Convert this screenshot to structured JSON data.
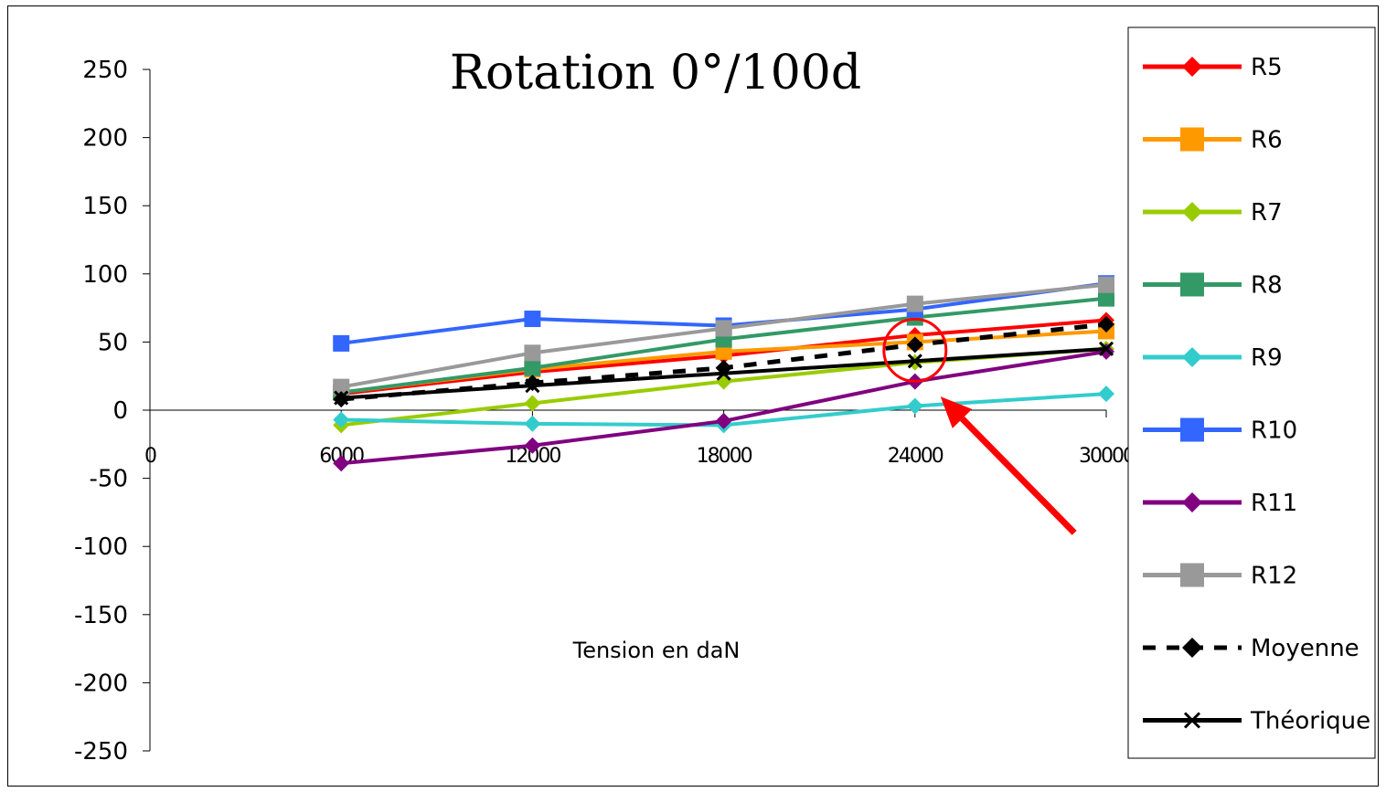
{
  "chart_data": {
    "type": "line",
    "title": "Rotation 0°/100d",
    "xlabel": "Tension en daN",
    "ylabel": "",
    "x_tick_labels": [
      "0",
      "6000",
      "12000",
      "18000",
      "24000",
      "30000"
    ],
    "x": [
      6000,
      12000,
      18000,
      24000,
      30000
    ],
    "xlim": [
      0,
      30000
    ],
    "ylim": [
      -250,
      250
    ],
    "y_ticks": [
      250,
      200,
      150,
      100,
      50,
      0,
      -50,
      -100,
      -150,
      -200,
      -250
    ],
    "legend_position": "right",
    "series": [
      {
        "name": "R5",
        "color": "#ff0000",
        "marker": "diamond",
        "dash": "solid",
        "values": [
          12,
          28,
          40,
          55,
          66
        ]
      },
      {
        "name": "R6",
        "color": "#ff9900",
        "marker": "square",
        "dash": "solid",
        "values": [
          13,
          30,
          43,
          50,
          58
        ]
      },
      {
        "name": "R7",
        "color": "#99cc00",
        "marker": "diamond",
        "dash": "solid",
        "values": [
          -11,
          5,
          21,
          35,
          45
        ]
      },
      {
        "name": "R8",
        "color": "#339966",
        "marker": "square",
        "dash": "solid",
        "values": [
          13,
          31,
          52,
          68,
          82
        ]
      },
      {
        "name": "R9",
        "color": "#33cccc",
        "marker": "diamond",
        "dash": "solid",
        "values": [
          -7,
          -10,
          -11,
          3,
          12
        ]
      },
      {
        "name": "R10",
        "color": "#3366ff",
        "marker": "square",
        "dash": "solid",
        "values": [
          49,
          67,
          62,
          74,
          93
        ]
      },
      {
        "name": "R11",
        "color": "#800080",
        "marker": "diamond",
        "dash": "solid",
        "values": [
          -39,
          -26,
          -8,
          21,
          43
        ]
      },
      {
        "name": "R12",
        "color": "#999999",
        "marker": "square",
        "dash": "solid",
        "values": [
          17,
          42,
          60,
          78,
          92
        ]
      },
      {
        "name": "Moyenne",
        "color": "#000000",
        "marker": "diamond",
        "dash": "dashed",
        "values": [
          8,
          20,
          31,
          48,
          63
        ]
      },
      {
        "name": "Théorique",
        "color": "#000000",
        "marker": "x",
        "dash": "solid",
        "values": [
          9,
          18,
          27,
          36,
          45
        ]
      }
    ],
    "annotations": [
      {
        "type": "circle",
        "x": 24000,
        "y": 44,
        "color": "#ff0000"
      },
      {
        "type": "arrow",
        "from": [
          29000,
          -90
        ],
        "to": [
          24800,
          10
        ],
        "color": "#ff0000"
      }
    ]
  }
}
